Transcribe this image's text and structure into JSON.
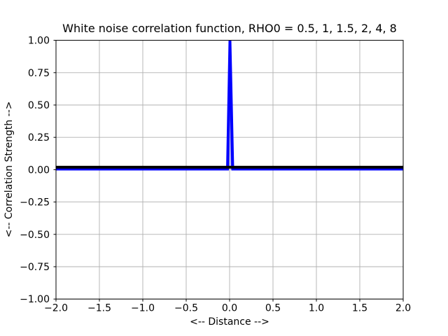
{
  "chart_data": {
    "type": "line",
    "title": "White noise correlation function, RHO0 = 0.5, 1, 1.5, 2, 4, 8",
    "xlabel": "<-- Distance -->",
    "ylabel": "<-- Correlation Strength -->",
    "xlim": [
      -2.0,
      2.0
    ],
    "ylim": [
      -1.0,
      1.0
    ],
    "xticks": [
      -2.0,
      -1.5,
      -1.0,
      -0.5,
      0.0,
      0.5,
      1.0,
      1.5,
      2.0
    ],
    "xtick_labels": [
      "−2.0",
      "−1.5",
      "−1.0",
      "−0.5",
      "0.0",
      "0.5",
      "1.0",
      "1.5",
      "2.0"
    ],
    "yticks": [
      1.0,
      0.75,
      0.5,
      0.25,
      0.0,
      -0.25,
      -0.5,
      -0.75,
      -1.0
    ],
    "ytick_labels": [
      "1.00",
      "0.75",
      "0.50",
      "0.25",
      "0.00",
      "−0.25",
      "−0.50",
      "−0.75",
      "−1.00"
    ],
    "grid": true,
    "grid_color": "#b0b0b0",
    "legend_visible": false,
    "background_color": "#ffffff",
    "spine_color": "#000000",
    "rho0_values": [
      0.5,
      1,
      1.5,
      2,
      4,
      8
    ],
    "description": "All RHO0 curves coincide visually: correlation strength is 1 at distance 0 and 0 everywhere else (a narrow unit spike at x = 0 over a flat zero line).",
    "series": [
      {
        "name": "white-noise-correlation-spike-blue",
        "color": "#0000ff",
        "linewidth": 4,
        "points": [
          [
            -2.0,
            0.005
          ],
          [
            -0.024,
            0.005
          ],
          [
            0.004,
            1.0
          ],
          [
            0.036,
            0.005
          ],
          [
            2.0,
            0.005
          ]
        ]
      },
      {
        "name": "white-noise-correlation-spike-inner",
        "color": "#0000ff",
        "linewidth": 2,
        "opacity": 0.7,
        "points": [
          [
            -0.012,
            0.005
          ],
          [
            0.002,
            0.8
          ],
          [
            0.022,
            0.005
          ]
        ]
      },
      {
        "name": "zero-line-black",
        "color": "#000000",
        "linewidth": 4,
        "points": [
          [
            -2.0,
            0.019
          ],
          [
            2.0,
            0.019
          ]
        ]
      }
    ]
  }
}
